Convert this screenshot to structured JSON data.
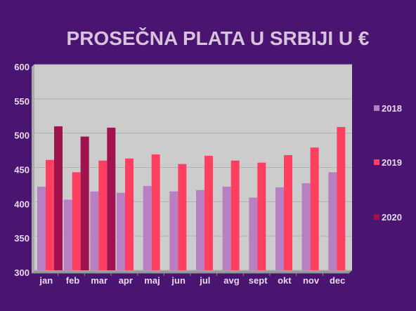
{
  "chart_data": {
    "type": "bar",
    "title": "PROSEČNA PLATA U SRBIJI U €",
    "xlabel": "",
    "ylabel": "",
    "ylim": [
      300,
      600
    ],
    "yticks": [
      300,
      350,
      400,
      450,
      500,
      550,
      600
    ],
    "grid": true,
    "legend_position": "right",
    "categories": [
      "jan",
      "feb",
      "mar",
      "apr",
      "maj",
      "jun",
      "jul",
      "avg",
      "sept",
      "okt",
      "nov",
      "dec"
    ],
    "series": [
      {
        "name": "2018",
        "color": "#b87fc3",
        "values": [
          422,
          403,
          415,
          413,
          423,
          415,
          417,
          422,
          406,
          421,
          427,
          443
        ]
      },
      {
        "name": "2019",
        "color": "#ff3f5f",
        "values": [
          461,
          443,
          460,
          463,
          469,
          455,
          467,
          460,
          457,
          468,
          479,
          509
        ]
      },
      {
        "name": "2020",
        "color": "#a1134f",
        "values": [
          510,
          495,
          508,
          null,
          null,
          null,
          null,
          null,
          null,
          null,
          null,
          null
        ]
      }
    ]
  },
  "colors": {
    "background": "#4a1570",
    "plot_area": "#cccccc",
    "gridline": "#b0b0b0",
    "title": "#d8c3dc",
    "text": "#e6d9ec"
  }
}
